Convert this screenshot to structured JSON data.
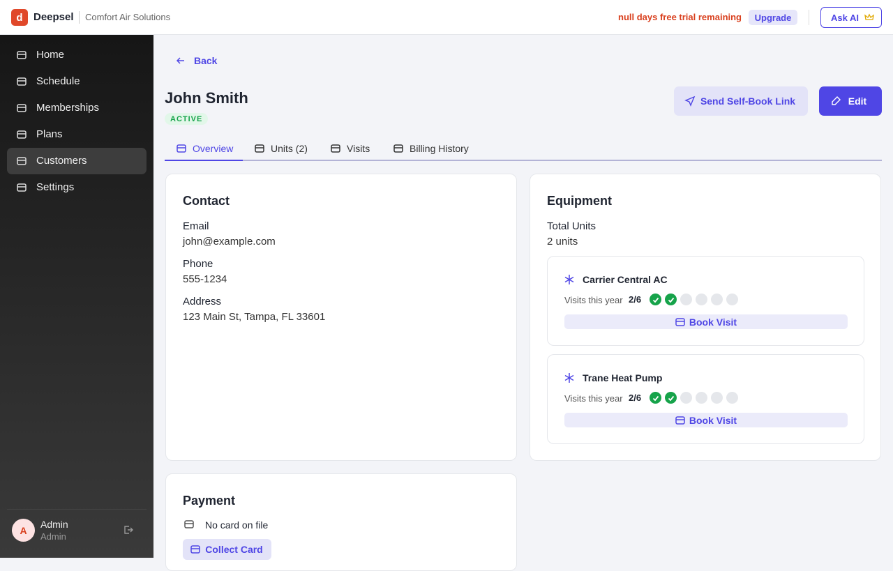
{
  "header": {
    "logo_letter": "d",
    "brand": "Deepsel",
    "company": "Comfort Air Solutions",
    "trial_notice": "null days free trial remaining",
    "upgrade": "Upgrade",
    "ask_ai": "Ask AI"
  },
  "sidebar": {
    "nav": [
      "Home",
      "Schedule",
      "Memberships",
      "Plans",
      "Customers",
      "Settings"
    ],
    "active": 4,
    "user": {
      "initial": "A",
      "name": "Admin",
      "role": "Admin"
    }
  },
  "page": {
    "back": "Back",
    "customer_name": "John Smith",
    "status": "ACTIVE",
    "actions": [
      "Send Self-Book Link",
      "Edit"
    ],
    "tabs": [
      "Overview",
      "Units (2)",
      "Visits",
      "Billing History"
    ],
    "active_tab": 0
  },
  "contact": {
    "title": "Contact",
    "fields": [
      {
        "label": "Email",
        "value": "john@example.com"
      },
      {
        "label": "Phone",
        "value": "555-1234"
      },
      {
        "label": "Address",
        "value": "123 Main St, Tampa, FL 33601"
      }
    ]
  },
  "equipment": {
    "title": "Equipment",
    "total_label": "Total Units",
    "total_value": "2 units",
    "units": [
      {
        "name": "Carrier Central AC",
        "visits_caption": "Visits this year",
        "visits_label": "2/6",
        "visits_done": 2,
        "visits_total": 6,
        "book": "Book Visit"
      },
      {
        "name": "Trane Heat Pump",
        "visits_caption": "Visits this year",
        "visits_label": "2/6",
        "visits_done": 2,
        "visits_total": 6,
        "book": "Book Visit"
      }
    ]
  },
  "payment": {
    "title": "Payment",
    "card_status": "No card on file",
    "collect": "Collect Card"
  }
}
